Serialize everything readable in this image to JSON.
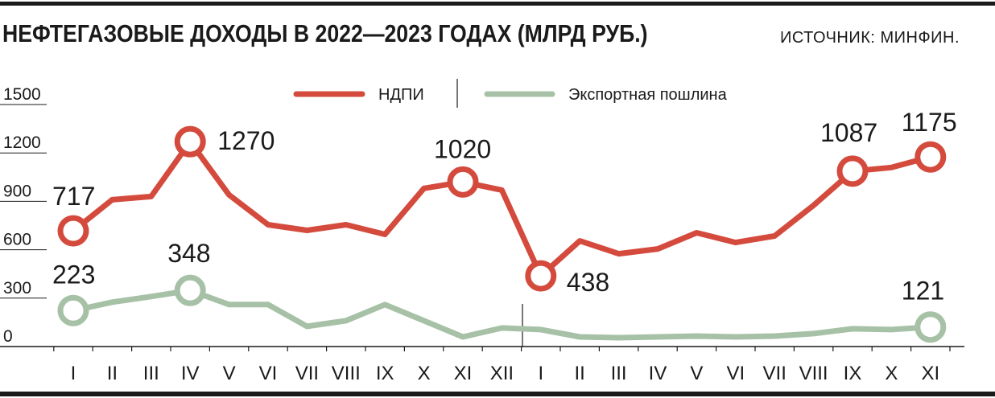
{
  "header": {
    "title": "НЕФТЕГАЗОВЫЕ ДОХОДЫ В 2022—2023 ГОДАХ (МЛРД РУБ.)",
    "source": "ИСТОЧНИК: МИНФИН."
  },
  "chart_data": {
    "type": "line",
    "title": "НЕФТЕГАЗОВЫЕ ДОХОДЫ В 2022—2023 ГОДАХ (МЛРД РУБ.)",
    "categories": [
      "I",
      "II",
      "III",
      "IV",
      "V",
      "VI",
      "VII",
      "VIII",
      "IX",
      "X",
      "XI",
      "XII",
      "I",
      "II",
      "III",
      "IV",
      "V",
      "VI",
      "VII",
      "VIII",
      "IX",
      "X",
      "XI"
    ],
    "ylim": [
      0,
      1500
    ],
    "yticks": [
      "1500",
      "1200",
      "900",
      "600",
      "300",
      "0"
    ],
    "grid": false,
    "legend_position": "top-center",
    "series": [
      {
        "name": "НДПИ",
        "color": "#d44b3e",
        "values": [
          717,
          910,
          930,
          1270,
          940,
          755,
          720,
          755,
          695,
          980,
          1020,
          970,
          438,
          655,
          575,
          605,
          705,
          645,
          685,
          875,
          1087,
          1110,
          1175
        ],
        "labels": [
          {
            "index": 0,
            "text": "717"
          },
          {
            "index": 3,
            "text": "1270"
          },
          {
            "index": 10,
            "text": "1020"
          },
          {
            "index": 12,
            "text": "438"
          },
          {
            "index": 20,
            "text": "1087"
          },
          {
            "index": 22,
            "text": "1175"
          }
        ]
      },
      {
        "name": "Экспортная пошлина",
        "color": "#a7c1a7",
        "values": [
          223,
          275,
          310,
          348,
          260,
          260,
          125,
          160,
          260,
          160,
          60,
          115,
          105,
          60,
          55,
          60,
          65,
          60,
          65,
          80,
          110,
          105,
          121
        ],
        "labels": [
          {
            "index": 0,
            "text": "223"
          },
          {
            "index": 3,
            "text": "348"
          },
          {
            "index": 22,
            "text": "121"
          }
        ]
      }
    ]
  }
}
